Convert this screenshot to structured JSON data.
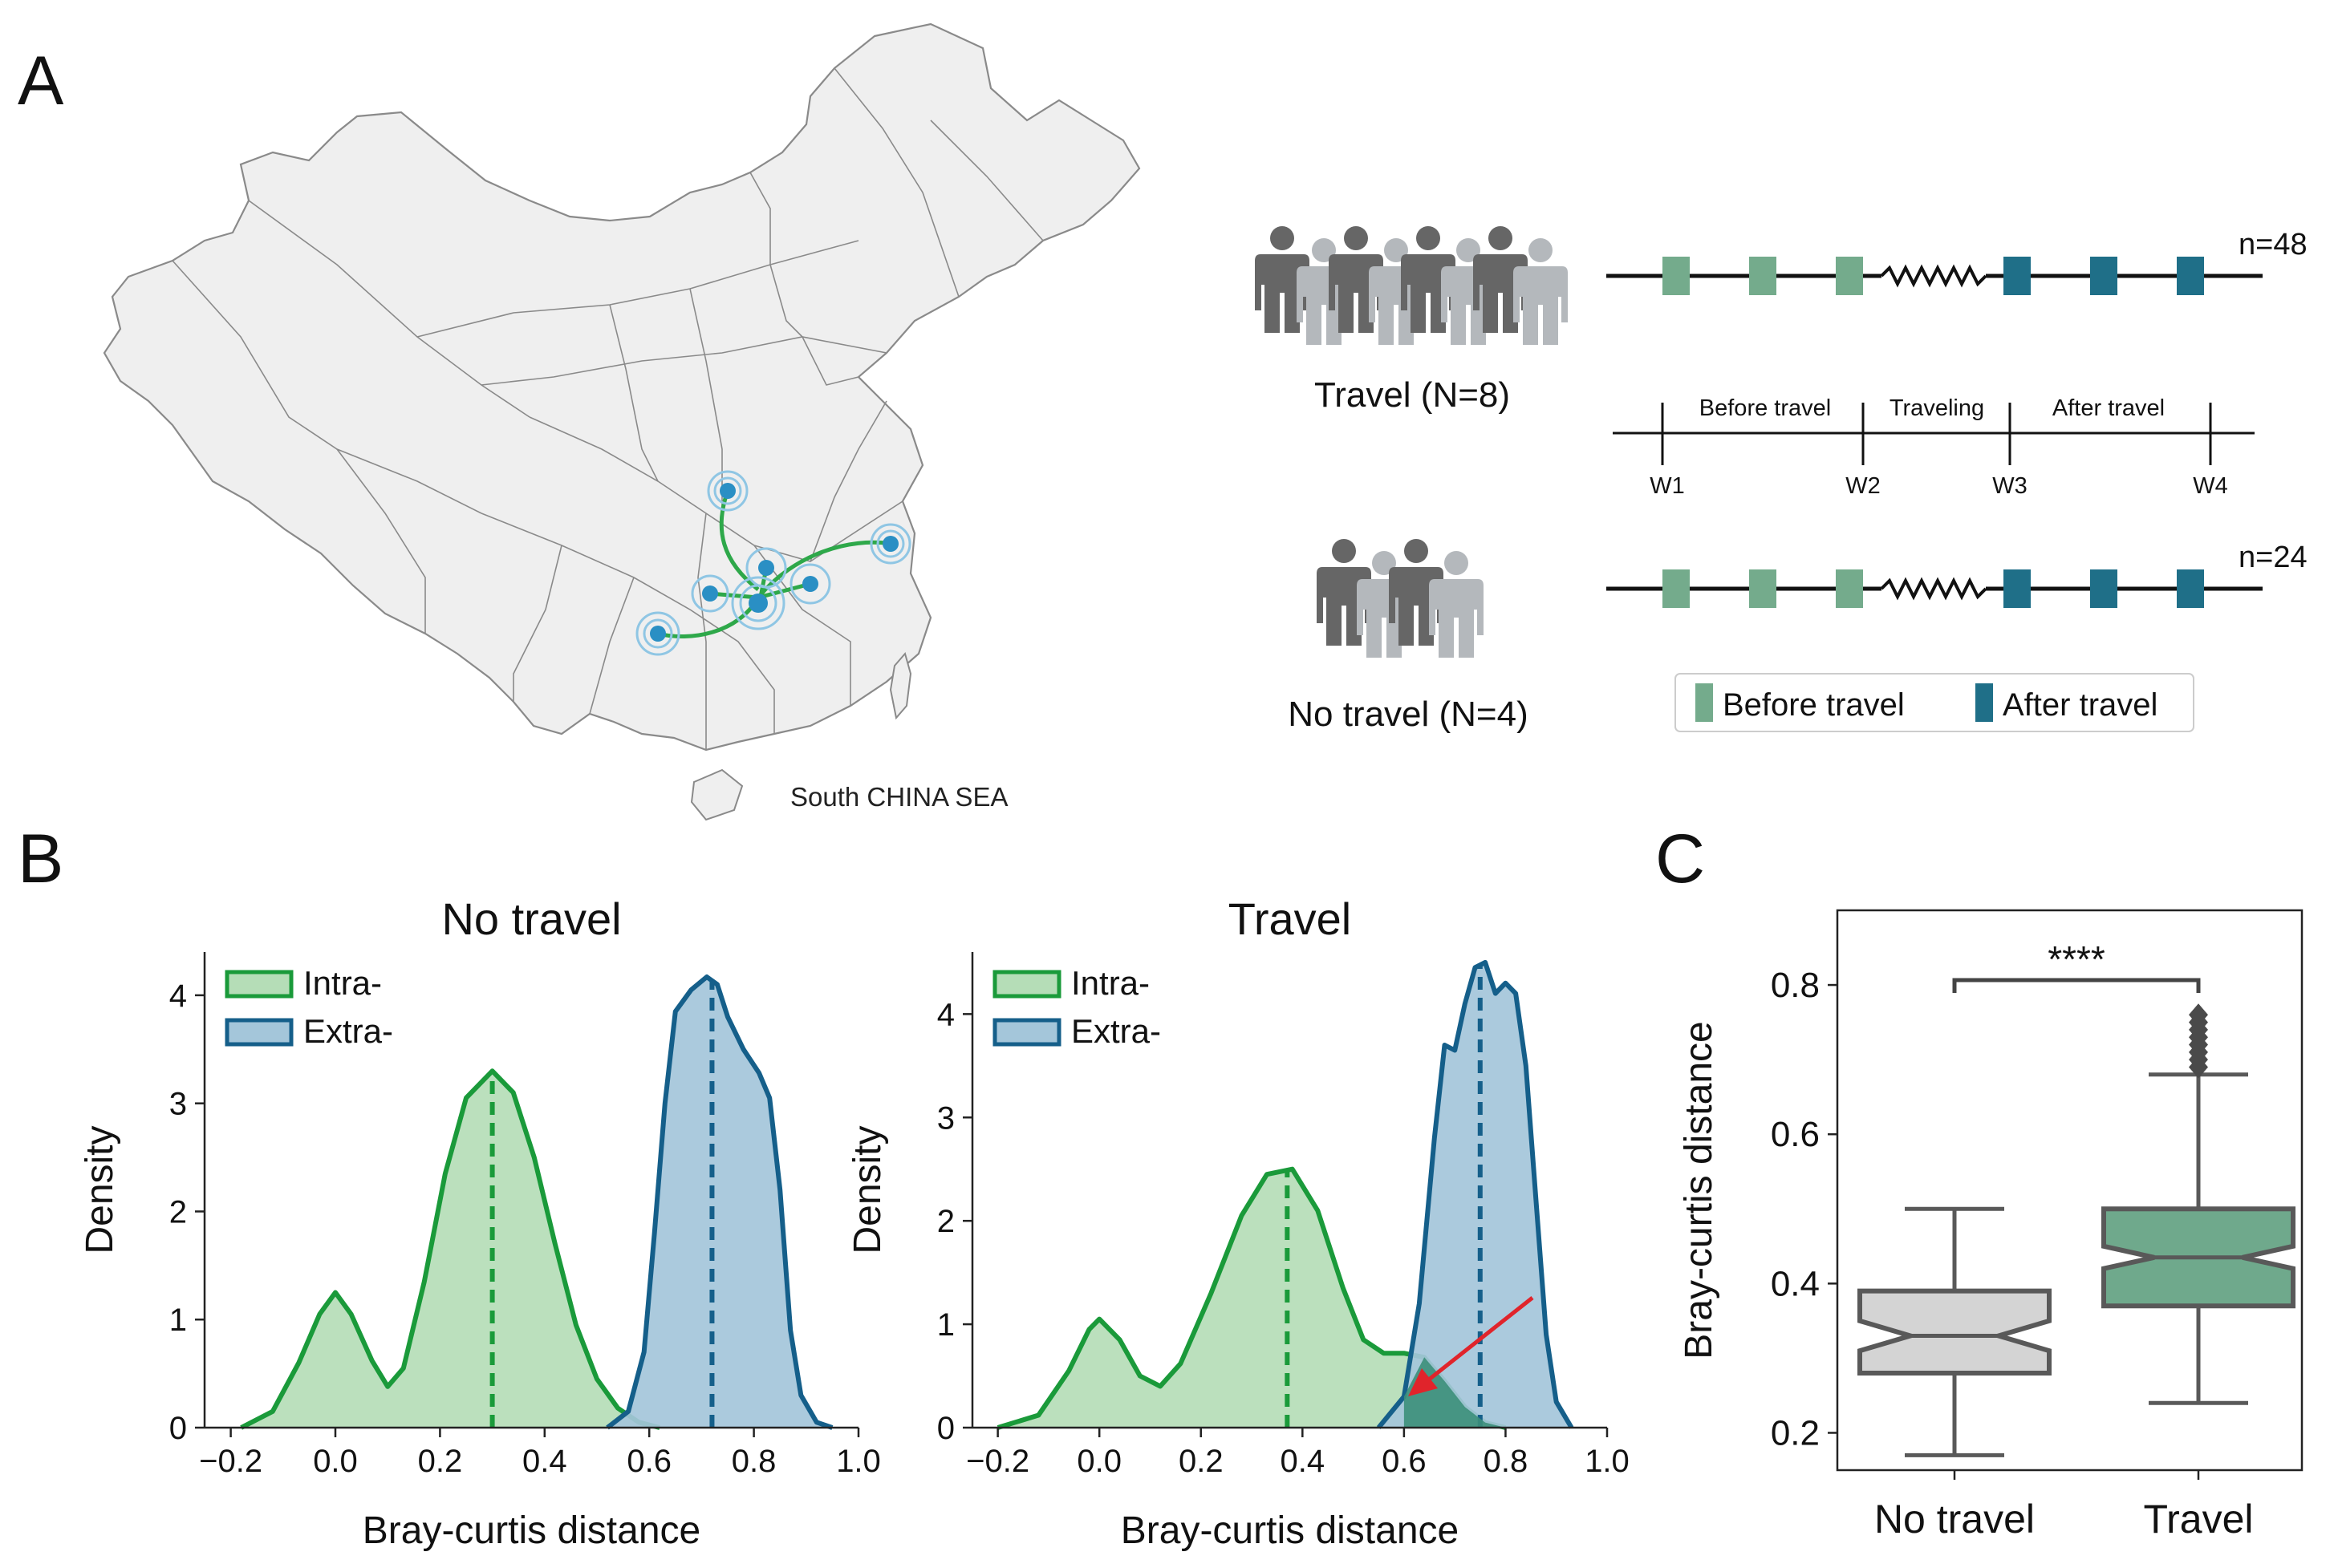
{
  "panel_labels": {
    "a": "A",
    "b": "B",
    "c": "C"
  },
  "map": {
    "sea_label": "South CHINA SEA",
    "colors": {
      "land": "#efefef",
      "border": "#8a8a8a",
      "route": "#2ea84a",
      "point": "#2a8fc4",
      "halo": "#8fc6e4"
    }
  },
  "cohorts": {
    "travel": {
      "label": "Travel (N=8)",
      "n_label": "n=48"
    },
    "no_travel": {
      "label": "No travel (N=4)",
      "n_label": "n=24"
    }
  },
  "timeline": {
    "phases": [
      "Before travel",
      "Traveling",
      "After travel"
    ],
    "weeks": [
      "W1",
      "W2",
      "W3",
      "W4"
    ]
  },
  "legend_a": {
    "before": {
      "label": "Before travel",
      "color": "#74ab8c"
    },
    "after": {
      "label": "After travel",
      "color": "#1f6f88"
    }
  },
  "colors": {
    "intra": "#1a9a3a",
    "intra_fill": "#b5ddb7",
    "extra": "#155f8a",
    "extra_fill": "#a4c6da",
    "arrow": "#e0242b",
    "box_gray": "#d4d4d4",
    "box_green": "#6fa98c",
    "box_edge": "#595959"
  },
  "chart_data": [
    {
      "type": "area",
      "title": "No travel",
      "xlabel": "Bray-curtis distance",
      "ylabel": "Density",
      "xlim": [
        -0.25,
        1.0
      ],
      "ylim": [
        0,
        4.4
      ],
      "xticks": [
        "−0.2",
        "0.0",
        "0.2",
        "0.4",
        "0.6",
        "0.8",
        "1.0"
      ],
      "yticks": [
        "0",
        "1",
        "2",
        "3",
        "4"
      ],
      "legend": [
        "Intra-",
        "Extra-"
      ],
      "series": [
        {
          "name": "Intra-",
          "x": [
            -0.18,
            -0.12,
            -0.07,
            -0.03,
            0.0,
            0.03,
            0.07,
            0.1,
            0.13,
            0.17,
            0.21,
            0.25,
            0.3,
            0.34,
            0.38,
            0.42,
            0.46,
            0.5,
            0.54,
            0.58,
            0.62
          ],
          "y": [
            0.0,
            0.15,
            0.6,
            1.05,
            1.25,
            1.05,
            0.62,
            0.38,
            0.55,
            1.35,
            2.35,
            3.05,
            3.3,
            3.1,
            2.5,
            1.7,
            0.95,
            0.45,
            0.18,
            0.05,
            0.0
          ],
          "mean": 0.3
        },
        {
          "name": "Extra-",
          "x": [
            0.52,
            0.56,
            0.59,
            0.61,
            0.63,
            0.65,
            0.68,
            0.71,
            0.73,
            0.75,
            0.78,
            0.81,
            0.83,
            0.85,
            0.87,
            0.89,
            0.92,
            0.95
          ],
          "y": [
            0.0,
            0.15,
            0.7,
            1.8,
            3.0,
            3.85,
            4.05,
            4.17,
            4.1,
            3.8,
            3.5,
            3.28,
            3.05,
            2.2,
            0.9,
            0.3,
            0.05,
            0.0
          ],
          "mean": 0.72
        }
      ]
    },
    {
      "type": "area",
      "title": "Travel",
      "xlabel": "Bray-curtis distance",
      "ylabel": "Density",
      "xlim": [
        -0.25,
        1.0
      ],
      "ylim": [
        0,
        4.6
      ],
      "xticks": [
        "−0.2",
        "0.0",
        "0.2",
        "0.4",
        "0.6",
        "0.8",
        "1.0"
      ],
      "yticks": [
        "0",
        "1",
        "2",
        "3",
        "4"
      ],
      "legend": [
        "Intra-",
        "Extra-"
      ],
      "series": [
        {
          "name": "Intra-",
          "x": [
            -0.2,
            -0.12,
            -0.06,
            -0.02,
            0.0,
            0.04,
            0.08,
            0.12,
            0.16,
            0.22,
            0.28,
            0.33,
            0.38,
            0.43,
            0.48,
            0.52,
            0.56,
            0.6,
            0.64,
            0.68,
            0.72,
            0.76,
            0.8
          ],
          "y": [
            0.0,
            0.12,
            0.55,
            0.95,
            1.05,
            0.85,
            0.5,
            0.4,
            0.62,
            1.3,
            2.05,
            2.45,
            2.5,
            2.1,
            1.35,
            0.85,
            0.72,
            0.72,
            0.68,
            0.45,
            0.2,
            0.05,
            0.0
          ],
          "mean": 0.37
        },
        {
          "name": "Extra-",
          "x": [
            0.55,
            0.6,
            0.63,
            0.66,
            0.68,
            0.7,
            0.72,
            0.74,
            0.76,
            0.78,
            0.8,
            0.82,
            0.84,
            0.86,
            0.88,
            0.9,
            0.93
          ],
          "y": [
            0.0,
            0.3,
            1.2,
            2.8,
            3.7,
            3.65,
            4.1,
            4.45,
            4.5,
            4.2,
            4.3,
            4.2,
            3.5,
            2.2,
            0.9,
            0.25,
            0.0
          ],
          "mean": 0.75
        }
      ]
    },
    {
      "type": "box",
      "ylabel": "Bray-curtis distance",
      "ylim": [
        0.15,
        0.9
      ],
      "yticks": [
        "0.2",
        "0.4",
        "0.6",
        "0.8"
      ],
      "categories": [
        "No travel",
        "Travel"
      ],
      "significance": "****",
      "boxes": [
        {
          "name": "No travel",
          "whisker_low": 0.17,
          "q1": 0.28,
          "median": 0.33,
          "q3": 0.39,
          "whisker_high": 0.5,
          "notch_low": 0.31,
          "notch_high": 0.35,
          "outliers": []
        },
        {
          "name": "Travel",
          "whisker_low": 0.24,
          "q1": 0.37,
          "median": 0.435,
          "q3": 0.5,
          "whisker_high": 0.68,
          "notch_low": 0.42,
          "notch_high": 0.45,
          "outliers": [
            0.69,
            0.7,
            0.71,
            0.72,
            0.73,
            0.74,
            0.75,
            0.76
          ]
        }
      ]
    }
  ]
}
